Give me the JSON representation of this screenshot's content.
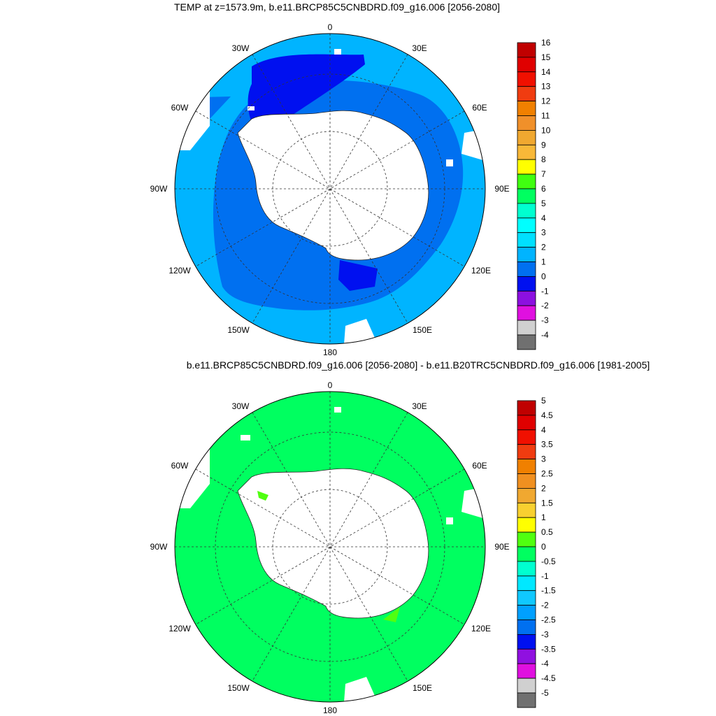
{
  "top_panel": {
    "title": "TEMP at z=1573.9m, b.e11.BRCP85C5CNBDRD.f09_g16.006 [2056-2080]",
    "lon_labels": {
      "0": "0",
      "30E": "30E",
      "60E": "60E",
      "90E": "90E",
      "120E": "120E",
      "150E": "150E",
      "180": "180",
      "150W": "150W",
      "120W": "120W",
      "90W": "90W",
      "60W": "60W",
      "30W": "30W"
    },
    "colorbar": {
      "labels": [
        "16",
        "15",
        "14",
        "13",
        "12",
        "11",
        "10",
        "9",
        "8",
        "7",
        "6",
        "5",
        "4",
        "3",
        "2",
        "1",
        "0",
        "-1",
        "-2",
        "-3",
        "-4"
      ],
      "colors": [
        "#c00000",
        "#e00000",
        "#f01000",
        "#f03c10",
        "#f08000",
        "#f0902a",
        "#f0a830",
        "#f8b838",
        "#ffff00",
        "#40ff10",
        "#00ff60",
        "#00ffd0",
        "#00ffff",
        "#00e0ff",
        "#00b4ff",
        "#0070f0",
        "#0010f0",
        "#8c10e0",
        "#e010e0",
        "#d0d0d0",
        "#707070"
      ]
    },
    "field_colors": {
      "ocean_2_3": "#00b4ff",
      "ocean_1_2": "#0070f0",
      "ocean_0_1": "#0010f0",
      "land": "#ffffff"
    }
  },
  "bottom_panel": {
    "title": "b.e11.BRCP85C5CNBDRD.f09_g16.006 [2056-2080] - b.e11.B20TRC5CNBDRD.f09_g16.006 [1981-2005]",
    "lon_labels": {
      "0": "0",
      "30E": "30E",
      "60E": "60E",
      "90E": "90E",
      "120E": "120E",
      "150E": "150E",
      "180": "180",
      "150W": "150W",
      "120W": "120W",
      "90W": "90W",
      "60W": "60W",
      "30W": "30W"
    },
    "colorbar": {
      "labels": [
        "5",
        "4.5",
        "4",
        "3.5",
        "3",
        "2.5",
        "2",
        "1.5",
        "1",
        "0.5",
        "0",
        "-0.5",
        "-1",
        "-1.5",
        "-2",
        "-2.5",
        "-3",
        "-3.5",
        "-4",
        "-4.5",
        "-5"
      ],
      "colors": [
        "#c00000",
        "#e00000",
        "#f01000",
        "#f03c10",
        "#f08000",
        "#f09020",
        "#f0a830",
        "#f8d030",
        "#ffff00",
        "#50ff10",
        "#00ff60",
        "#00ffd0",
        "#00e8ff",
        "#10c8ff",
        "#00a0ff",
        "#0070f0",
        "#0010f0",
        "#9010e0",
        "#e010e0",
        "#d0d0d0",
        "#707070"
      ]
    },
    "field_colors": {
      "ocean_0_05": "#00ff60",
      "ocean_05_1": "#50ff10",
      "land": "#ffffff"
    }
  }
}
